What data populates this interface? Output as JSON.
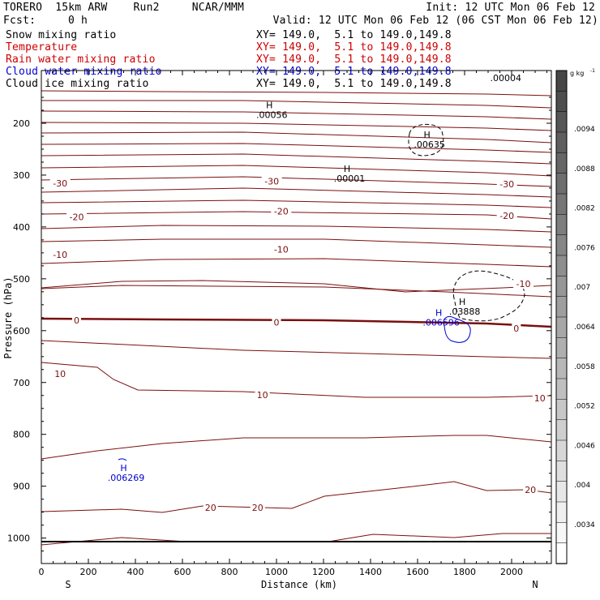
{
  "header": {
    "model_line": "TORERO  15km ARW    Run2     NCAR/MMM",
    "init_line": "Init: 12 UTC Mon 06 Feb 12",
    "fcst_label": "Fcst:",
    "fcst_value": "0 h",
    "valid_line": "Valid: 12 UTC Mon 06 Feb 12 (06 CST Mon 06 Feb 12)",
    "xy_text": "XY= 149.0,  5.1 to 149.0,149.8"
  },
  "colors": {
    "snow": "#000000",
    "temperature": "#ff0000",
    "rain": "#ff0000",
    "cloud_water": "#0000cc",
    "cloud_ice": "#000000",
    "isotherm": "#7a0f0f",
    "cloud_water_contour": "#0000cc",
    "cloud_ice_contour": "#000000"
  },
  "chart_data": {
    "type": "contour",
    "legend": [
      {
        "name": "Snow mixing ratio",
        "color": "#000000"
      },
      {
        "name": "Temperature",
        "color": "#cc0000"
      },
      {
        "name": "Rain water mixing ratio",
        "color": "#cc0000"
      },
      {
        "name": "Cloud water mixing ratio",
        "color": "#0000cc"
      },
      {
        "name": "Cloud ice mixing ratio",
        "color": "#000000"
      }
    ],
    "xlabel": "Distance (km)",
    "ylabel": "Pressure (hPa)",
    "xlim": [
      0,
      2180
    ],
    "ylim": [
      1050,
      150
    ],
    "x_ticks": [
      0,
      200,
      400,
      600,
      800,
      1000,
      1200,
      1400,
      1600,
      1800,
      2000
    ],
    "y_ticks": [
      200,
      300,
      400,
      500,
      600,
      700,
      800,
      900,
      1000
    ],
    "x_end_labels": {
      "left": "S",
      "right": "N"
    },
    "surface_pressure_hpa": 1010,
    "colorbar": {
      "unit": "g kg",
      "unit_exponent": "-1",
      "labels": [
        ".0034",
        ".004",
        ".0046",
        ".0052",
        ".0058",
        ".0064",
        ".007",
        ".0076",
        ".0082",
        ".0088",
        ".0094"
      ]
    },
    "isotherm_labels": [
      {
        "text": "-30",
        "x": 80,
        "p": 316
      },
      {
        "text": "-30",
        "x": 980,
        "p": 312
      },
      {
        "text": "-30",
        "x": 1980,
        "p": 317
      },
      {
        "text": "-20",
        "x": 150,
        "p": 381
      },
      {
        "text": "-20",
        "x": 1020,
        "p": 370
      },
      {
        "text": "-20",
        "x": 1980,
        "p": 378
      },
      {
        "text": "-10",
        "x": 80,
        "p": 453
      },
      {
        "text": "-10",
        "x": 1020,
        "p": 443
      },
      {
        "text": "-10",
        "x": 2050,
        "p": 510
      },
      {
        "text": "0",
        "x": 150,
        "p": 580
      },
      {
        "text": "0",
        "x": 1000,
        "p": 584
      },
      {
        "text": "0",
        "x": 2020,
        "p": 596
      },
      {
        "text": "10",
        "x": 80,
        "p": 683
      },
      {
        "text": "10",
        "x": 940,
        "p": 724
      },
      {
        "text": "10",
        "x": 2120,
        "p": 730
      },
      {
        "text": "20",
        "x": 720,
        "p": 941
      },
      {
        "text": "20",
        "x": 920,
        "p": 941
      },
      {
        "text": "20",
        "x": 2080,
        "p": 907
      }
    ],
    "extrema": [
      {
        "symbol": "H",
        "value": ".00056",
        "x": 970,
        "p": 171
      },
      {
        "symbol": "H",
        "value": ".00635",
        "x": 1640,
        "p": 228
      },
      {
        "symbol": "H",
        "value": ".00001",
        "x": 1300,
        "p": 294
      },
      {
        "symbol": "H",
        "value": ".03888",
        "x": 1790,
        "p": 550
      },
      {
        "symbol": "H",
        "value": ".006596",
        "x": 1690,
        "p": 571
      },
      {
        "symbol": "H",
        "value": ".006269",
        "x": 350,
        "p": 871
      }
    ]
  }
}
